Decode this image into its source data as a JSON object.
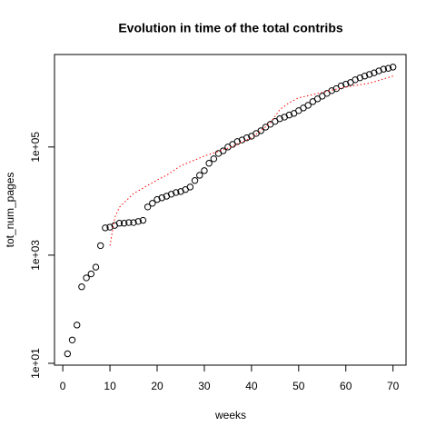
{
  "chart_data": {
    "type": "scatter",
    "title": "Evolution in time of the total contribs",
    "xlabel": "weeks",
    "ylabel": "tot_num_pages",
    "log_y": true,
    "xlim": [
      -1.76,
      72.76
    ],
    "xticks": [
      0,
      10,
      20,
      30,
      40,
      50,
      60,
      70
    ],
    "ylim": [
      9.25,
      5130000
    ],
    "yticks": [
      {
        "value": 10,
        "label": "1e+01"
      },
      {
        "value": 1000,
        "label": "1e+03"
      },
      {
        "value": 100000,
        "label": "1e+05"
      }
    ],
    "series": [
      {
        "style": "points",
        "color": "#000000",
        "x": [
          1,
          2,
          3,
          4,
          5,
          6,
          7,
          8,
          9,
          10,
          11,
          12,
          13,
          14,
          15,
          16,
          17,
          18,
          19,
          20,
          21,
          22,
          23,
          24,
          25,
          26,
          27,
          28,
          29,
          30,
          31,
          32,
          33,
          34,
          35,
          36,
          37,
          38,
          39,
          40,
          41,
          42,
          43,
          44,
          45,
          46,
          47,
          48,
          49,
          50,
          51,
          52,
          53,
          54,
          55,
          56,
          57,
          58,
          59,
          60,
          61,
          62,
          63,
          64,
          65,
          66,
          67,
          68,
          69,
          70
        ],
        "values": [
          15,
          27,
          51,
          260,
          380,
          450,
          600,
          1500,
          3200,
          3300,
          3550,
          3900,
          3900,
          4000,
          4000,
          4200,
          4400,
          7800,
          9100,
          10700,
          11500,
          12300,
          13400,
          14400,
          15000,
          16300,
          18200,
          24000,
          30000,
          36500,
          50000,
          60500,
          76000,
          85000,
          100000,
          112000,
          126000,
          135000,
          148000,
          158000,
          178000,
          200000,
          233000,
          263000,
          297000,
          333000,
          357000,
          390000,
          418000,
          470000,
          527000,
          590000,
          690000,
          776000,
          870000,
          980000,
          1100000,
          1200000,
          1350000,
          1450000,
          1560000,
          1750000,
          1900000,
          2050000,
          2200000,
          2350000,
          2550000,
          2750000,
          2850000,
          3000000
        ]
      },
      {
        "style": "dotted-line",
        "color": "#ff0000",
        "x": [
          10,
          11,
          12,
          15,
          20,
          22,
          25,
          30,
          35,
          40,
          42,
          44,
          46,
          48,
          50,
          55,
          60,
          65,
          70
        ],
        "values": [
          1500,
          4900,
          7700,
          13800,
          24500,
          30000,
          45000,
          68000,
          95000,
          148000,
          200000,
          280000,
          490000,
          660000,
          810000,
          1020000,
          1290000,
          1510000,
          2050000
        ]
      }
    ]
  }
}
